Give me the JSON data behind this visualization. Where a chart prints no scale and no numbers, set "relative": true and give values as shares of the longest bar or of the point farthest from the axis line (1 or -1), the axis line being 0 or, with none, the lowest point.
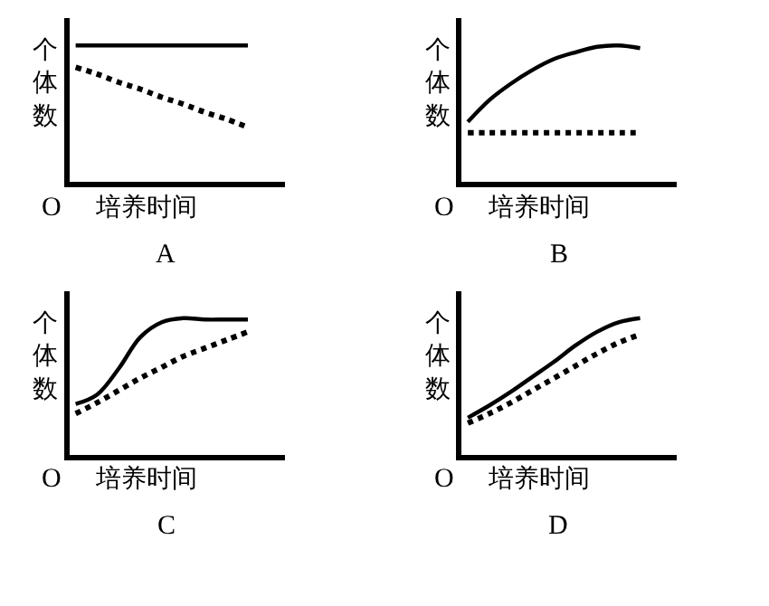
{
  "chart_data": [
    {
      "type": "line",
      "title": "A",
      "xlabel": "培养时间",
      "ylabel": "个体数",
      "annotations": [
        "O"
      ],
      "relative": true,
      "categories": [
        null,
        null,
        null,
        null,
        null,
        null,
        null,
        null,
        null
      ],
      "series": [
        {
          "color": "#000000",
          "line_style": "solid",
          "values": [
            1,
            1,
            1,
            1,
            1,
            1,
            1,
            1,
            1
          ]
        },
        {
          "color": "#000000",
          "line_style": "dotted",
          "values": [
            0.84,
            0.79,
            0.73,
            0.68,
            0.62,
            0.57,
            0.51,
            0.46,
            0.4
          ]
        }
      ]
    },
    {
      "type": "line",
      "title": "B",
      "xlabel": "培养时间",
      "ylabel": "个体数",
      "annotations": [
        "O"
      ],
      "relative": true,
      "categories": [
        null,
        null,
        null,
        null,
        null,
        null,
        null,
        null,
        null
      ],
      "series": [
        {
          "color": "#000000",
          "line_style": "solid",
          "values": [
            0.44,
            0.6,
            0.72,
            0.82,
            0.9,
            0.95,
            0.99,
            1,
            0.98
          ]
        },
        {
          "color": "#000000",
          "line_style": "dotted",
          "values": [
            0.36,
            0.36,
            0.36,
            0.36,
            0.36,
            0.36,
            0.36,
            0.36,
            0.36
          ]
        }
      ]
    },
    {
      "type": "line",
      "title": "C",
      "xlabel": "培养时间",
      "ylabel": "个体数",
      "annotations": [
        "O"
      ],
      "relative": true,
      "categories": [
        null,
        null,
        null,
        null,
        null,
        null,
        null,
        null,
        null
      ],
      "series": [
        {
          "color": "#000000",
          "line_style": "solid",
          "values": [
            0.37,
            0.44,
            0.63,
            0.86,
            0.97,
            1,
            0.99,
            0.99,
            0.99
          ]
        },
        {
          "color": "#000000",
          "line_style": "dotted",
          "values": [
            0.3,
            0.38,
            0.47,
            0.56,
            0.64,
            0.72,
            0.78,
            0.84,
            0.9
          ]
        }
      ]
    },
    {
      "type": "line",
      "title": "D",
      "xlabel": "培养时间",
      "ylabel": "个体数",
      "annotations": [
        "O"
      ],
      "relative": true,
      "categories": [
        null,
        null,
        null,
        null,
        null,
        null,
        null,
        null,
        null
      ],
      "series": [
        {
          "color": "#000000",
          "line_style": "solid",
          "values": [
            0.27,
            0.36,
            0.46,
            0.57,
            0.68,
            0.8,
            0.9,
            0.97,
            1
          ]
        },
        {
          "color": "#000000",
          "line_style": "dotted",
          "values": [
            0.23,
            0.3,
            0.38,
            0.47,
            0.56,
            0.65,
            0.74,
            0.82,
            0.88
          ]
        }
      ]
    }
  ]
}
